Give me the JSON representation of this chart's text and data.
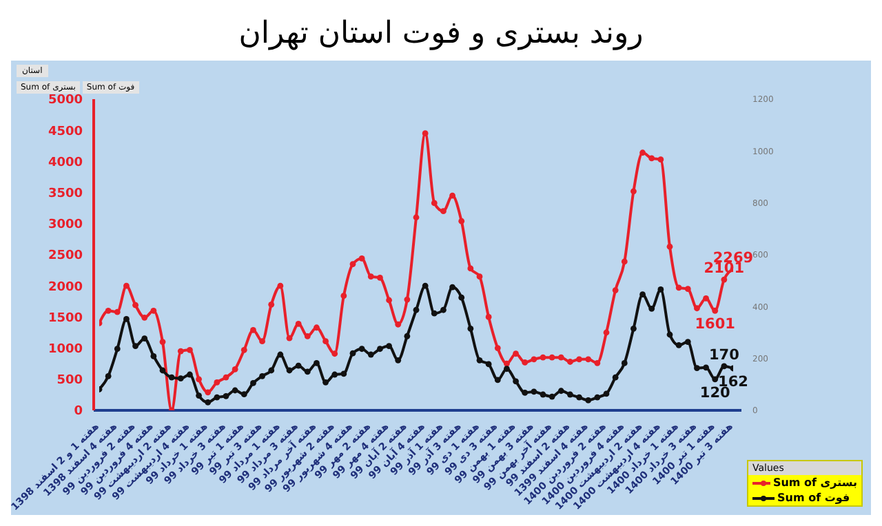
{
  "chart_data": {
    "type": "line",
    "title": "روند بستری و فوت استان تهران",
    "categories": [
      "هفته 1 و 2 اسفند 1398",
      null,
      "هفته 4 اسفند 1398",
      null,
      "هفته 2 فروردین 99",
      null,
      "هفته 4 فروردین 99",
      null,
      "هفته 2 اردیبهشت 99",
      null,
      "هفته 4 اردیبهشت 99",
      null,
      "هفته 1 خرداد 99",
      null,
      "هفته 3 خرداد 99",
      null,
      "هفته 1 تیر 99",
      null,
      "هفته 3 تیر 99",
      null,
      "هفته 1 مرداد 99",
      null,
      "هفته 3 مرداد 99",
      null,
      "هفته آخر مرداد 99",
      null,
      "هفته 2 شهریور 99",
      null,
      "هفته 4 شهریور 99",
      null,
      "هفته 2 مهر 99",
      null,
      "هفته 4 مهر 99",
      null,
      "هفته 2 آبان 99",
      null,
      "هفته 4 آبان 99",
      null,
      "هفته 1 آذر 99",
      null,
      "هفته 3 آذر 99",
      null,
      "هفته 1 دی 99",
      null,
      "هفته 3 دی 99",
      null,
      "هفته 1 بهمن 99",
      null,
      "هفته 3 بهمن 99",
      null,
      "هفته آخر بهمن 99",
      null,
      "هفته 2 اسفند 99",
      null,
      "هفته 4 اسفند 1399",
      null,
      "هفته 2 فروردین 1400",
      null,
      "هفته 4 فروردین 1400",
      null,
      "هفته 2 اردیبهشت 1400",
      null,
      "هفته 4 اردیبهشت 1400",
      null,
      "هفته 1 خرداد 1400",
      null,
      "هفته 3 خرداد 1400",
      null,
      "هفته 1 تیر 1400",
      null,
      "هفته 3 تیر 1400"
    ],
    "series": [
      {
        "name": "Sum of بستری",
        "color": "#e8202a",
        "values": [
          1400,
          1600,
          1580,
          2000,
          1690,
          1490,
          1600,
          1100,
          0,
          950,
          970,
          500,
          290,
          450,
          530,
          660,
          970,
          1290,
          1110,
          1700,
          2000,
          1160,
          1390,
          1190,
          1330,
          1110,
          910,
          1840,
          2350,
          2440,
          2150,
          2130,
          1770,
          1380,
          1780,
          3100,
          4450,
          3330,
          3200,
          3450,
          3040,
          2280,
          2150,
          1500,
          1000,
          750,
          910,
          770,
          820,
          850,
          850,
          850,
          780,
          820,
          820,
          760,
          1250,
          1930,
          2390,
          3520,
          4140,
          4050,
          4030,
          2630,
          1970,
          1950,
          1640,
          1800,
          1601,
          2101,
          2269
        ],
        "value_labels": [
          null,
          null,
          null,
          null,
          null,
          null,
          null,
          null,
          null,
          null,
          null,
          null,
          null,
          null,
          null,
          null,
          null,
          null,
          null,
          null,
          null,
          null,
          null,
          null,
          null,
          null,
          null,
          null,
          null,
          null,
          null,
          null,
          null,
          null,
          null,
          null,
          null,
          null,
          null,
          null,
          null,
          null,
          null,
          null,
          null,
          null,
          null,
          null,
          null,
          null,
          null,
          null,
          null,
          null,
          null,
          null,
          null,
          null,
          null,
          null,
          null,
          null,
          null,
          null,
          null,
          null,
          null,
          null,
          "1601",
          "2101",
          "2269"
        ]
      },
      {
        "name": "Sum of فوت",
        "color": "#111111",
        "axis": "y2",
        "values": [
          81,
          132,
          237,
          352,
          248,
          277,
          209,
          154,
          127,
          123,
          138,
          57,
          31,
          50,
          55,
          77,
          62,
          105,
          132,
          154,
          215,
          154,
          172,
          149,
          182,
          108,
          138,
          141,
          220,
          237,
          215,
          237,
          248,
          193,
          286,
          387,
          480,
          374,
          387,
          475,
          435,
          315,
          193,
          178,
          117,
          160,
          112,
          68,
          72,
          61,
          53,
          75,
          61,
          50,
          39,
          50,
          64,
          127,
          182,
          315,
          447,
          392,
          466,
          292,
          251,
          264,
          163,
          165,
          120,
          170,
          162
        ],
        "value_labels": [
          null,
          null,
          null,
          null,
          null,
          null,
          null,
          null,
          null,
          null,
          null,
          null,
          null,
          null,
          null,
          null,
          null,
          null,
          null,
          null,
          null,
          null,
          null,
          null,
          null,
          null,
          null,
          null,
          null,
          null,
          null,
          null,
          null,
          null,
          null,
          null,
          null,
          null,
          null,
          null,
          null,
          null,
          null,
          null,
          null,
          null,
          null,
          null,
          null,
          null,
          null,
          null,
          null,
          null,
          null,
          null,
          null,
          null,
          null,
          null,
          null,
          null,
          null,
          null,
          null,
          null,
          null,
          null,
          "120",
          "170",
          "162"
        ]
      }
    ],
    "ylim": [
      0,
      5000
    ],
    "yticks": [
      0,
      500,
      1000,
      1500,
      2000,
      2500,
      3000,
      3500,
      4000,
      4500,
      5000
    ],
    "y2lim": [
      0,
      1200
    ],
    "y2ticks": [
      0,
      200,
      400,
      600,
      800,
      1000,
      1200
    ],
    "legend": "bottom right",
    "legend_title": "Values",
    "marker": "circle",
    "line_style": "solid",
    "grid": false,
    "annotations": [
      "استان",
      "Sum of بستری",
      "Sum of فوت"
    ]
  }
}
